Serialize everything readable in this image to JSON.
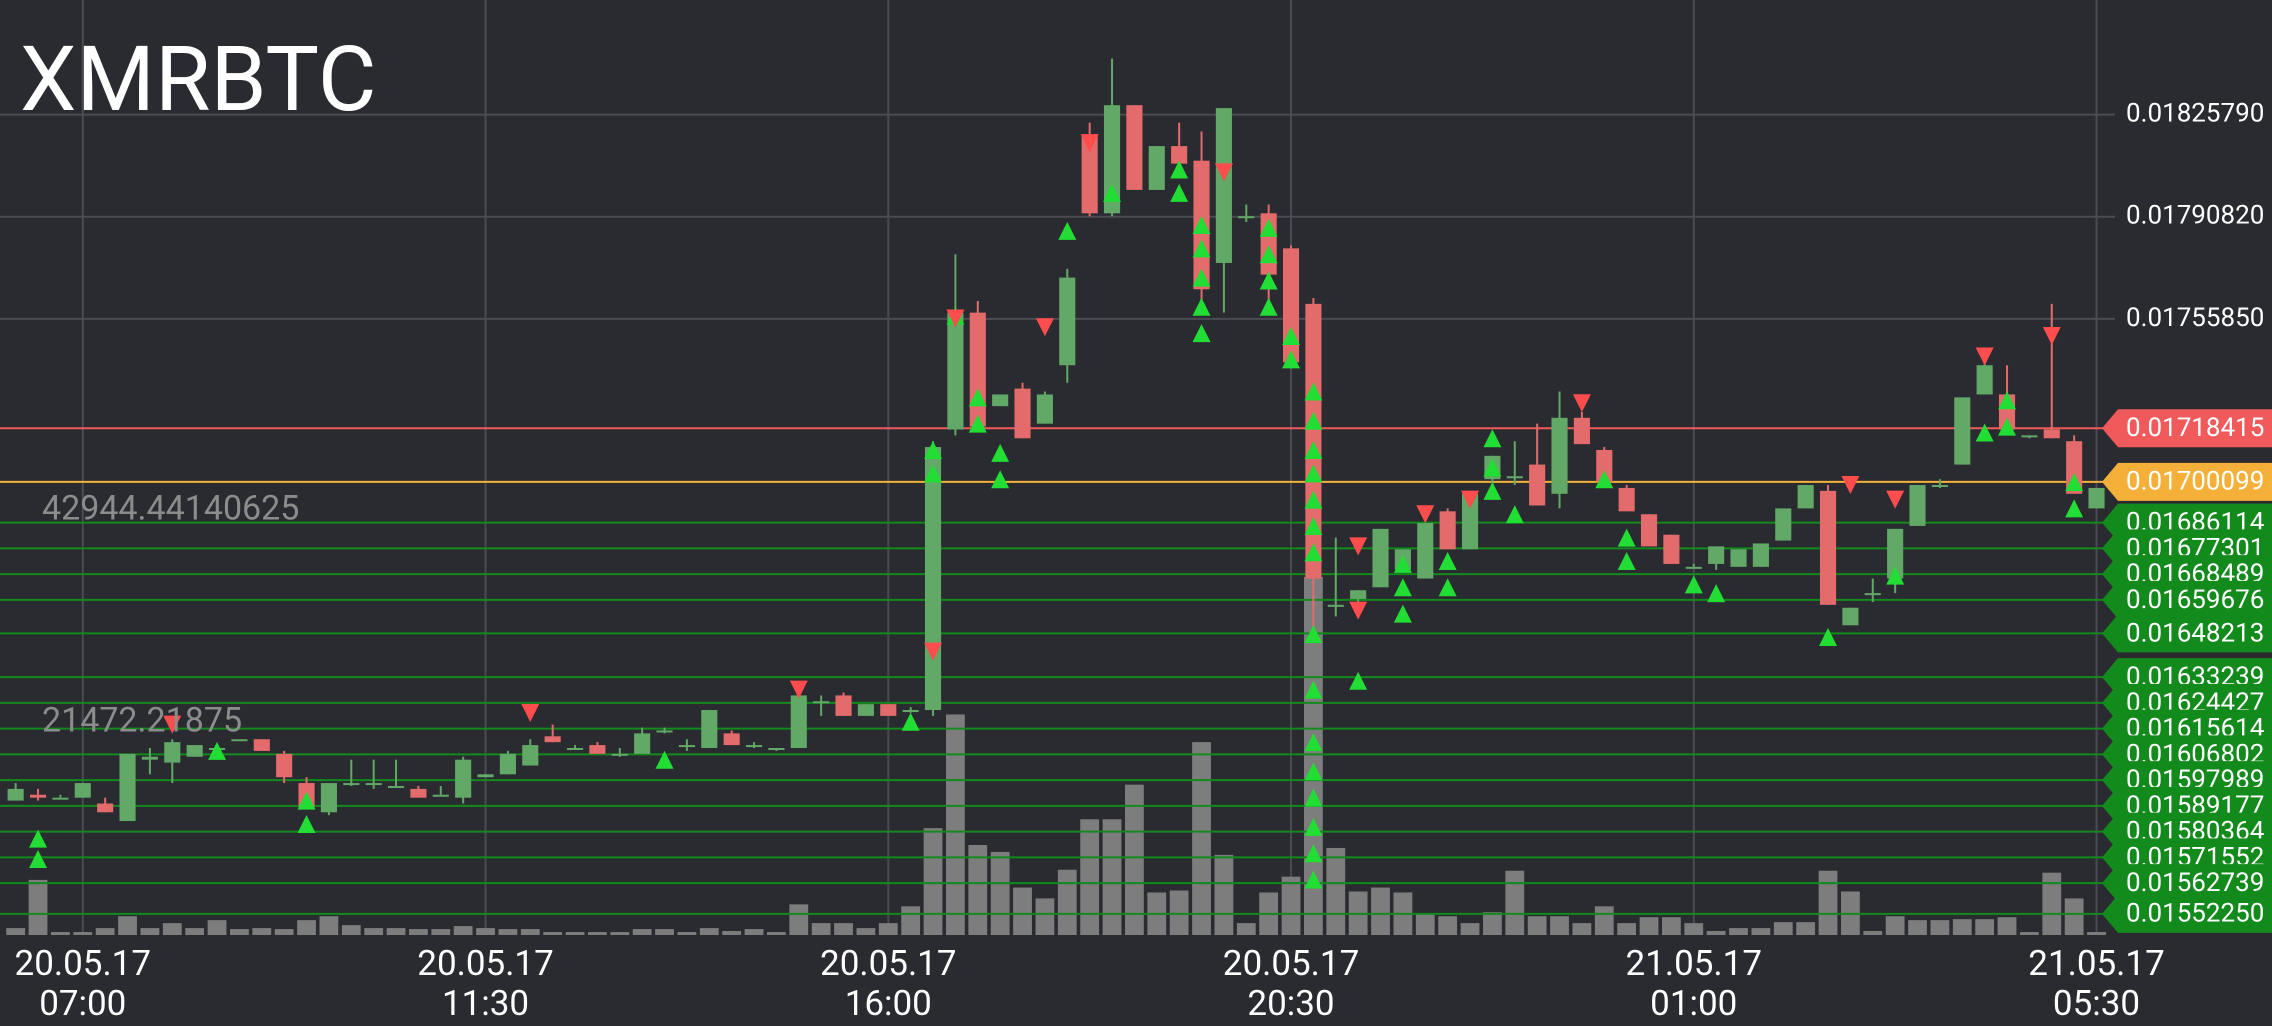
{
  "chart_data": {
    "type": "candlestick",
    "title": "XMRBTC",
    "up_color": "#62a867",
    "down_color": "#e46b6b",
    "volume_color": "#7d7d7d",
    "buy_color": "#22dd33",
    "sell_color": "#ff4c4c",
    "grid": true,
    "xlim": [
      -0.7,
      93.2
    ],
    "xticks": [
      {
        "value": 3,
        "label": "20.05.17\n07:00"
      },
      {
        "value": 21,
        "label": "20.05.17\n11:30"
      },
      {
        "value": 39,
        "label": "20.05.17\n16:00"
      },
      {
        "value": 57,
        "label": "20.05.17\n20:30"
      },
      {
        "value": 75,
        "label": "21.05.17\n01:00"
      },
      {
        "value": 93,
        "label": "21.05.17\n05:30"
      }
    ],
    "ylim": [
      0.01545,
      0.01865
    ],
    "yticks": [
      {
        "value": 0.0182579,
        "label": "0.01825790"
      },
      {
        "value": 0.0179082,
        "label": "0.01790820"
      },
      {
        "value": 0.0175585,
        "label": "0.01755850"
      }
    ],
    "levels": [
      {
        "value": 0.01718415,
        "color": "#f05a5a"
      },
      {
        "value": 0.01700099,
        "color": "#f5b03a"
      },
      {
        "value": 0.01686114,
        "color": "#138a1c"
      },
      {
        "value": 0.01677301,
        "color": "#138a1c"
      },
      {
        "value": 0.01668489,
        "color": "#138a1c"
      },
      {
        "value": 0.01659676,
        "color": "#138a1c"
      },
      {
        "value": 0.01648213,
        "color": "#138a1c"
      },
      {
        "value": 0.01633239,
        "color": "#138a1c"
      },
      {
        "value": 0.01624427,
        "color": "#138a1c"
      },
      {
        "value": 0.01615614,
        "color": "#138a1c"
      },
      {
        "value": 0.01606802,
        "color": "#138a1c"
      },
      {
        "value": 0.01597989,
        "color": "#138a1c"
      },
      {
        "value": 0.01589177,
        "color": "#138a1c"
      },
      {
        "value": 0.01580364,
        "color": "#138a1c"
      },
      {
        "value": 0.01571552,
        "color": "#138a1c"
      },
      {
        "value": 0.01562739,
        "color": "#138a1c"
      },
      {
        "value": 0.0155225,
        "label": "0.01552250",
        "color": "#138a1c"
      }
    ],
    "open": [
      0.01591,
      0.01593,
      0.01592,
      0.01592,
      0.0159,
      0.01584,
      0.01605,
      0.01604,
      0.01606,
      0.01609,
      0.01612,
      0.01612,
      0.01607,
      0.01597,
      0.01587,
      0.01597,
      0.01597,
      0.01596,
      0.01595,
      0.01593,
      0.01592,
      0.01599,
      0.016,
      0.01603,
      0.01613,
      0.01609,
      0.0161,
      0.01607,
      0.01607,
      0.01615,
      0.0161,
      0.01609,
      0.01614,
      0.0161,
      0.01609,
      0.01609,
      0.01625,
      0.01627,
      0.0162,
      0.01624,
      0.01622,
      0.01622,
      0.01718,
      0.01758,
      0.01726,
      0.01732,
      0.0172,
      0.0174,
      0.01819,
      0.01792,
      0.01829,
      0.018,
      0.01815,
      0.0181,
      0.01775,
      0.01791,
      0.01792,
      0.0178,
      0.01761,
      0.01658,
      0.0166,
      0.01664,
      0.0167,
      0.01667,
      0.0169,
      0.01677,
      0.01701,
      0.01702,
      0.01706,
      0.01696,
      0.01722,
      0.01711,
      0.01698,
      0.01689,
      0.01682,
      0.01671,
      0.01672,
      0.01671,
      0.01671,
      0.0168,
      0.01691,
      0.01697,
      0.01651,
      0.01662,
      0.01667,
      0.01685,
      0.01699,
      0.01706,
      0.0173,
      0.0173,
      0.01716,
      0.01718,
      0.01714,
      0.01691
    ],
    "high": [
      0.01597,
      0.01595,
      0.01593,
      0.01597,
      0.01592,
      0.01607,
      0.01609,
      0.01612,
      0.0161,
      0.01609,
      0.01612,
      0.01612,
      0.01608,
      0.01599,
      0.01597,
      0.01605,
      0.01605,
      0.01605,
      0.01596,
      0.01596,
      0.01606,
      0.016,
      0.01608,
      0.01612,
      0.01617,
      0.0161,
      0.01611,
      0.01609,
      0.01616,
      0.01616,
      0.01612,
      0.01622,
      0.01615,
      0.01611,
      0.01609,
      0.01627,
      0.01627,
      0.01628,
      0.01624,
      0.01624,
      0.01623,
      0.01714,
      0.01778,
      0.01762,
      0.0173,
      0.01734,
      0.01731,
      0.01773,
      0.01823,
      0.01845,
      0.01829,
      0.01815,
      0.01823,
      0.0182,
      0.01828,
      0.01795,
      0.01795,
      0.01781,
      0.01763,
      0.01681,
      0.01663,
      0.01684,
      0.01677,
      0.01686,
      0.01691,
      0.01696,
      0.01709,
      0.01714,
      0.0172,
      0.01731,
      0.01724,
      0.01712,
      0.01699,
      0.01689,
      0.01682,
      0.01672,
      0.01678,
      0.01677,
      0.01679,
      0.01691,
      0.01699,
      0.01699,
      0.01657,
      0.01667,
      0.01684,
      0.01699,
      0.01701,
      0.01729,
      0.01744,
      0.0174,
      0.01716,
      0.01761,
      0.01716,
      0.01698
    ],
    "low": [
      0.01591,
      0.01591,
      0.01592,
      0.01592,
      0.01587,
      0.01584,
      0.016,
      0.01597,
      0.01606,
      0.01609,
      0.01612,
      0.01608,
      0.01597,
      0.01588,
      0.01586,
      0.01596,
      0.01595,
      0.01596,
      0.01592,
      0.01593,
      0.0159,
      0.01599,
      0.016,
      0.01603,
      0.01611,
      0.01609,
      0.01607,
      0.01606,
      0.01607,
      0.01614,
      0.01608,
      0.01609,
      0.0161,
      0.01609,
      0.01608,
      0.01609,
      0.0162,
      0.0162,
      0.0162,
      0.0162,
      0.01621,
      0.0162,
      0.01716,
      0.01719,
      0.01726,
      0.01715,
      0.0172,
      0.01734,
      0.01791,
      0.01791,
      0.018,
      0.018,
      0.01809,
      0.01761,
      0.01758,
      0.01789,
      0.01758,
      0.01741,
      0.01647,
      0.01654,
      0.01658,
      0.01664,
      0.0167,
      0.01667,
      0.01677,
      0.01677,
      0.01699,
      0.01699,
      0.01692,
      0.01691,
      0.01713,
      0.017,
      0.0169,
      0.01678,
      0.01672,
      0.01671,
      0.0167,
      0.01671,
      0.01671,
      0.0168,
      0.01691,
      0.01658,
      0.01651,
      0.01659,
      0.01662,
      0.01685,
      0.01698,
      0.01706,
      0.0173,
      0.01718,
      0.01715,
      0.01715,
      0.01696,
      0.01691
    ],
    "close": [
      0.01595,
      0.01592,
      0.01592,
      0.01597,
      0.01587,
      0.01607,
      0.01606,
      0.01611,
      0.0161,
      0.01609,
      0.01612,
      0.01608,
      0.01599,
      0.01588,
      0.01597,
      0.01597,
      0.01597,
      0.01596,
      0.01592,
      0.01593,
      0.01605,
      0.016,
      0.01607,
      0.0161,
      0.01611,
      0.01609,
      0.01607,
      0.01607,
      0.01614,
      0.01615,
      0.0161,
      0.01622,
      0.0161,
      0.0161,
      0.01609,
      0.01627,
      0.01625,
      0.0162,
      0.01624,
      0.0162,
      0.01622,
      0.01712,
      0.01758,
      0.01719,
      0.0173,
      0.01715,
      0.0173,
      0.0177,
      0.01792,
      0.01829,
      0.018,
      0.01815,
      0.01809,
      0.01766,
      0.01828,
      0.01791,
      0.01771,
      0.01741,
      0.01667,
      0.01658,
      0.01663,
      0.01684,
      0.01677,
      0.01686,
      0.01677,
      0.01696,
      0.01709,
      0.01702,
      0.01692,
      0.01722,
      0.01713,
      0.017,
      0.0169,
      0.01678,
      0.01672,
      0.01671,
      0.01678,
      0.01677,
      0.01679,
      0.01691,
      0.01699,
      0.01658,
      0.01657,
      0.01662,
      0.01684,
      0.01699,
      0.01699,
      0.01729,
      0.0174,
      0.01718,
      0.01716,
      0.01715,
      0.01696,
      0.01698
    ],
    "volume": [
      700,
      5570,
      300,
      300,
      700,
      1900,
      700,
      1200,
      700,
      1500,
      600,
      700,
      600,
      1500,
      1900,
      1000,
      700,
      700,
      600,
      600,
      900,
      700,
      600,
      600,
      300,
      300,
      300,
      300,
      600,
      600,
      300,
      700,
      400,
      600,
      300,
      3100,
      1200,
      1200,
      700,
      1200,
      2900,
      10800,
      22300,
      9100,
      8400,
      4800,
      3700,
      6600,
      11700,
      11700,
      15200,
      4300,
      4500,
      19500,
      8100,
      1200,
      4300,
      5900,
      36200,
      8800,
      4400,
      4800,
      4300,
      2200,
      1900,
      1200,
      2300,
      6500,
      1900,
      1900,
      1200,
      2900,
      1200,
      1800,
      1800,
      1200,
      400,
      700,
      700,
      1300,
      1300,
      6500,
      4400,
      400,
      1900,
      1500,
      1500,
      1600,
      1600,
      1800,
      300,
      6300,
      3700,
      300
    ],
    "volume_ylim": [
      0,
      94540
    ],
    "volume_ticks": [
      42944.44140625,
      21472.21875
    ],
    "buy_signals": [
      [
        1,
        0.01578
      ],
      [
        1,
        0.01571
      ],
      [
        9,
        0.01608
      ],
      [
        13,
        0.01591
      ],
      [
        13,
        0.01583
      ],
      [
        29,
        0.01605
      ],
      [
        40,
        0.01618
      ],
      [
        41,
        0.01711
      ],
      [
        41,
        0.01703
      ],
      [
        42,
        0.01757
      ],
      [
        43,
        0.01729
      ],
      [
        43,
        0.0172
      ],
      [
        44,
        0.0171
      ],
      [
        44,
        0.01701
      ],
      [
        47,
        0.01786
      ],
      [
        49,
        0.01799
      ],
      [
        52,
        0.01807
      ],
      [
        52,
        0.01799
      ],
      [
        53,
        0.01788
      ],
      [
        53,
        0.0178
      ],
      [
        53,
        0.0177
      ],
      [
        53,
        0.0176
      ],
      [
        53,
        0.01751
      ],
      [
        56,
        0.01787
      ],
      [
        56,
        0.01778
      ],
      [
        56,
        0.01769
      ],
      [
        56,
        0.0176
      ],
      [
        57,
        0.0175
      ],
      [
        57,
        0.01742
      ],
      [
        58,
        0.01731
      ],
      [
        58,
        0.01721
      ],
      [
        58,
        0.01711
      ],
      [
        58,
        0.01703
      ],
      [
        58,
        0.01694
      ],
      [
        58,
        0.01685
      ],
      [
        58,
        0.01676
      ],
      [
        58,
        0.01648
      ],
      [
        58,
        0.01629
      ],
      [
        58,
        0.01611
      ],
      [
        58,
        0.01601
      ],
      [
        58,
        0.01592
      ],
      [
        58,
        0.01582
      ],
      [
        58,
        0.01573
      ],
      [
        58,
        0.01564
      ],
      [
        60,
        0.01632
      ],
      [
        62,
        0.01672
      ],
      [
        62,
        0.01664
      ],
      [
        62,
        0.01655
      ],
      [
        64,
        0.01673
      ],
      [
        64,
        0.01664
      ],
      [
        66,
        0.01715
      ],
      [
        66,
        0.01705
      ],
      [
        66,
        0.01697
      ],
      [
        67,
        0.01689
      ],
      [
        71,
        0.01701
      ],
      [
        72,
        0.01681
      ],
      [
        72,
        0.01673
      ],
      [
        75,
        0.01665
      ],
      [
        76,
        0.01662
      ],
      [
        81,
        0.01647
      ],
      [
        84,
        0.01668
      ],
      [
        88,
        0.01717
      ],
      [
        89,
        0.01728
      ],
      [
        89,
        0.01719
      ],
      [
        92,
        0.017
      ],
      [
        92,
        0.01691
      ]
    ],
    "sell_signals": [
      [
        7,
        0.01617
      ],
      [
        23,
        0.01621
      ],
      [
        35,
        0.01629
      ],
      [
        41,
        0.01642
      ],
      [
        42,
        0.01756
      ],
      [
        46,
        0.01753
      ],
      [
        48,
        0.01816
      ],
      [
        54,
        0.01806
      ],
      [
        60,
        0.01678
      ],
      [
        60,
        0.01656
      ],
      [
        63,
        0.01689
      ],
      [
        65,
        0.01694
      ],
      [
        70,
        0.01727
      ],
      [
        82,
        0.01699
      ],
      [
        84,
        0.01694
      ],
      [
        88,
        0.01743
      ],
      [
        91,
        0.0175
      ]
    ]
  }
}
